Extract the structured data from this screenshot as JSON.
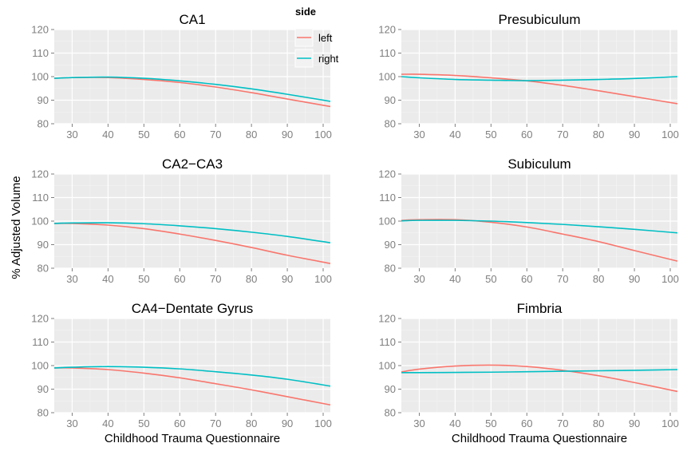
{
  "colors": {
    "left": "#F8766D",
    "right": "#00BFC4"
  },
  "chart_data": {
    "type": "line",
    "ylabel": "% Adjusted Volume",
    "xlabel": "Childhood Trauma Questionnaire",
    "xlim": [
      25,
      102
    ],
    "ylim": [
      80,
      120
    ],
    "xticks": [
      30,
      40,
      50,
      60,
      70,
      80,
      90,
      100
    ],
    "yticks": [
      80,
      90,
      100,
      110,
      120
    ],
    "grid": true,
    "legend": {
      "title": "side",
      "entries": [
        "left",
        "right"
      ],
      "placement": "top-right of first panel"
    },
    "x": [
      25,
      30,
      40,
      50,
      60,
      70,
      80,
      90,
      102
    ],
    "panels": [
      {
        "title": "CA1",
        "series": [
          {
            "name": "left",
            "values": [
              99.3,
              99.6,
              99.6,
              98.8,
              97.5,
              95.6,
              93.2,
              90.5,
              87.3
            ]
          },
          {
            "name": "right",
            "values": [
              99.3,
              99.6,
              99.8,
              99.3,
              98.2,
              96.7,
              94.8,
              92.5,
              89.5
            ]
          }
        ]
      },
      {
        "title": "Presubiculum",
        "series": [
          {
            "name": "left",
            "values": [
              101.0,
              101.0,
              100.5,
              99.5,
              98.2,
              96.3,
              94.0,
              91.5,
              88.5
            ]
          },
          {
            "name": "right",
            "values": [
              100.0,
              99.5,
              98.8,
              98.5,
              98.3,
              98.5,
              98.8,
              99.2,
              100.0
            ]
          }
        ]
      },
      {
        "title": "CA2−CA3",
        "series": [
          {
            "name": "left",
            "values": [
              99.0,
              99.0,
              98.3,
              96.8,
              94.5,
              91.8,
              88.8,
              85.5,
              82.0
            ]
          },
          {
            "name": "right",
            "values": [
              99.0,
              99.2,
              99.3,
              98.9,
              98.0,
              96.8,
              95.3,
              93.5,
              90.8
            ]
          }
        ]
      },
      {
        "title": "Subiculum",
        "series": [
          {
            "name": "left",
            "values": [
              100.3,
              100.6,
              100.6,
              99.5,
              97.5,
              94.5,
              91.3,
              87.5,
              83.0
            ]
          },
          {
            "name": "right",
            "values": [
              100.1,
              100.3,
              100.3,
              100.0,
              99.4,
              98.6,
              97.6,
              96.5,
              95.0
            ]
          }
        ]
      },
      {
        "title": "CA4−Dentate Gyrus",
        "series": [
          {
            "name": "left",
            "values": [
              99.0,
              99.0,
              98.3,
              96.8,
              94.8,
              92.3,
              89.7,
              86.8,
              83.3
            ]
          },
          {
            "name": "right",
            "values": [
              99.0,
              99.3,
              99.6,
              99.3,
              98.6,
              97.4,
              96.0,
              94.2,
              91.3
            ]
          }
        ]
      },
      {
        "title": "Fimbria",
        "series": [
          {
            "name": "left",
            "values": [
              97.3,
              98.5,
              99.8,
              100.2,
              99.6,
              98.0,
              95.7,
              92.8,
              89.0
            ]
          },
          {
            "name": "right",
            "values": [
              97.0,
              97.0,
              97.1,
              97.2,
              97.4,
              97.6,
              97.8,
              98.0,
              98.3
            ]
          }
        ]
      }
    ]
  }
}
